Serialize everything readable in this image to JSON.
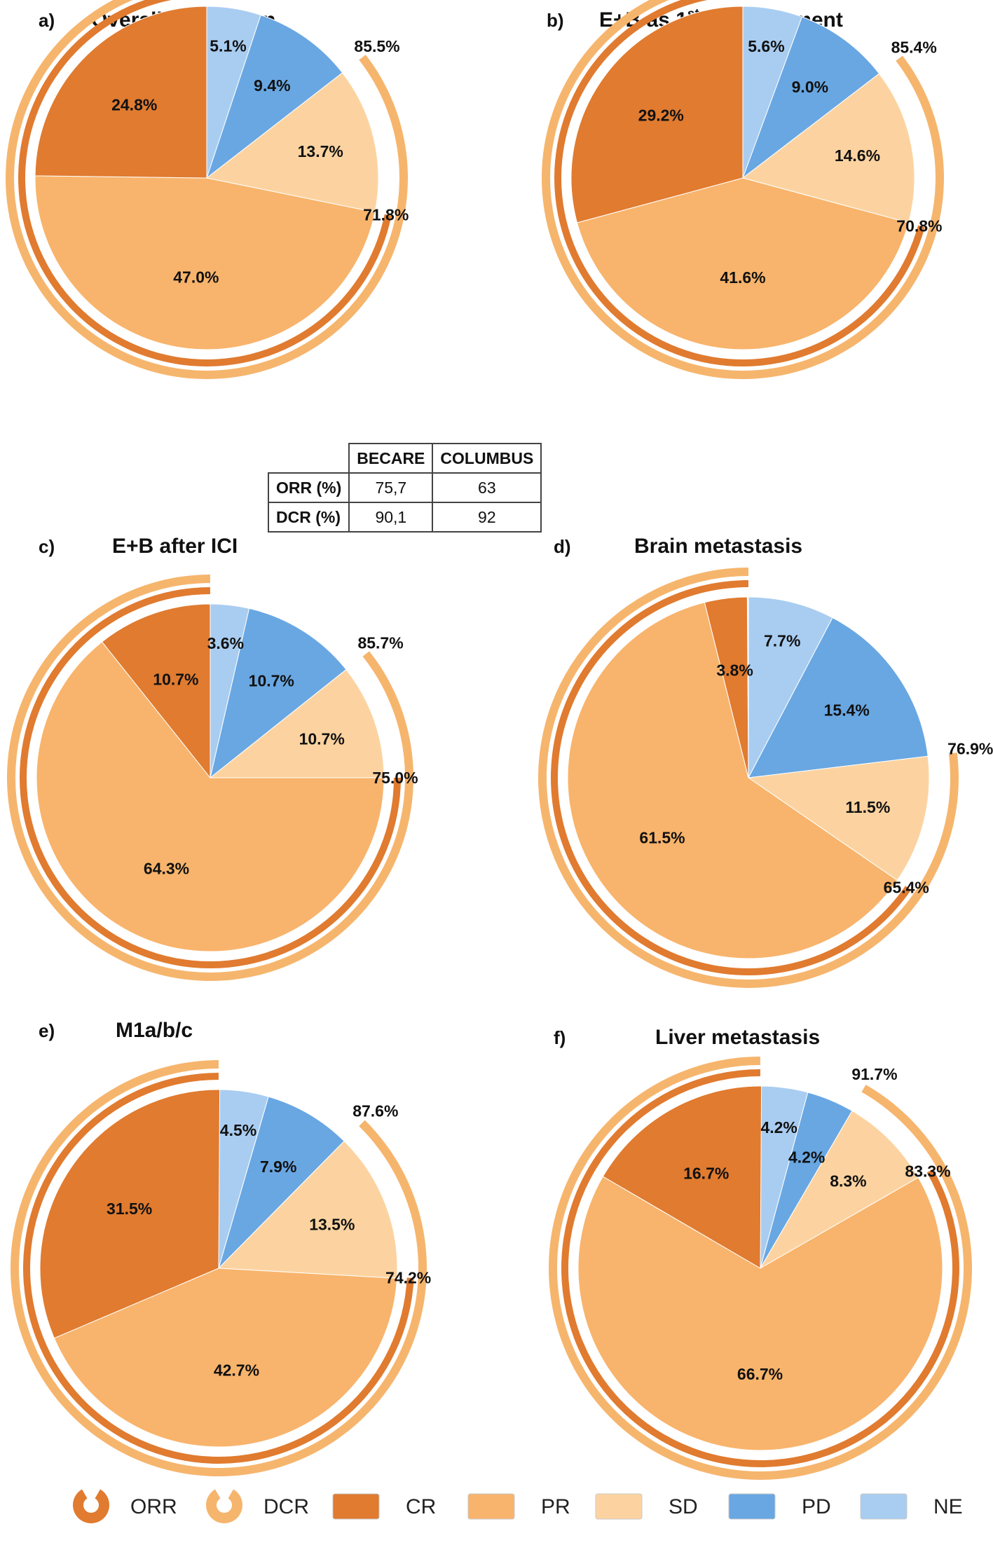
{
  "colors": {
    "CR": "#e07b30",
    "PR": "#f8b46c",
    "SD": "#fcd3a0",
    "PD": "#69a7e2",
    "NE": "#a9cdf1",
    "ORR": "#e07b30",
    "DCR": "#f6b56d"
  },
  "chart_data": [
    {
      "type": "pie",
      "letter": "a)",
      "title": "Overall population",
      "slices": [
        {
          "name": "NE",
          "value": 5.1,
          "label": "5.1%"
        },
        {
          "name": "PD",
          "value": 9.4,
          "label": "9.4%"
        },
        {
          "name": "SD",
          "value": 13.7,
          "label": "13.7%"
        },
        {
          "name": "PR",
          "value": 47.0,
          "label": "47.0%"
        },
        {
          "name": "CR",
          "value": 24.8,
          "label": "24.8%"
        }
      ],
      "DCR": {
        "value": 85.5,
        "label": "85.5%"
      },
      "ORR": {
        "value": 71.8,
        "label": "71.8%"
      }
    },
    {
      "type": "pie",
      "letter": "b)",
      "title": "E+B as 1",
      "title_sup": "st",
      "title_tail": " line treatment",
      "slices": [
        {
          "name": "NE",
          "value": 5.6,
          "label": "5.6%"
        },
        {
          "name": "PD",
          "value": 9.0,
          "label": "9.0%"
        },
        {
          "name": "SD",
          "value": 14.6,
          "label": "14.6%"
        },
        {
          "name": "PR",
          "value": 41.6,
          "label": "41.6%"
        },
        {
          "name": "CR",
          "value": 29.2,
          "label": "29.2%"
        }
      ],
      "DCR": {
        "value": 85.4,
        "label": "85.4%"
      },
      "ORR": {
        "value": 70.8,
        "label": "70.8%"
      }
    },
    {
      "type": "pie",
      "letter": "c)",
      "title": "E+B after ICI",
      "slices": [
        {
          "name": "NE",
          "value": 3.6,
          "label": "3.6%"
        },
        {
          "name": "PD",
          "value": 10.7,
          "label": "10.7%"
        },
        {
          "name": "SD",
          "value": 10.7,
          "label": "10.7%"
        },
        {
          "name": "PR",
          "value": 64.3,
          "label": "64.3%"
        },
        {
          "name": "CR",
          "value": 10.7,
          "label": "10.7%"
        }
      ],
      "DCR": {
        "value": 85.7,
        "label": "85.7%"
      },
      "ORR": {
        "value": 75.0,
        "label": "75.0%"
      }
    },
    {
      "type": "pie",
      "letter": "d)",
      "title": "Brain metastasis",
      "slices": [
        {
          "name": "NE",
          "value": 7.7,
          "label": "7.7%"
        },
        {
          "name": "PD",
          "value": 15.4,
          "label": "15.4%"
        },
        {
          "name": "SD",
          "value": 11.5,
          "label": "11.5%"
        },
        {
          "name": "PR",
          "value": 61.5,
          "label": "61.5%"
        },
        {
          "name": "CR",
          "value": 3.8,
          "label": "3.8%"
        }
      ],
      "DCR": {
        "value": 76.9,
        "label": "76.9%"
      },
      "ORR": {
        "value": 65.4,
        "label": "65.4%"
      }
    },
    {
      "type": "pie",
      "letter": "e)",
      "title": "M1a/b/c",
      "slices": [
        {
          "name": "NE",
          "value": 4.5,
          "label": "4.5%"
        },
        {
          "name": "PD",
          "value": 7.9,
          "label": "7.9%"
        },
        {
          "name": "SD",
          "value": 13.5,
          "label": "13.5%"
        },
        {
          "name": "PR",
          "value": 42.7,
          "label": "42.7%"
        },
        {
          "name": "CR",
          "value": 31.5,
          "label": "31.5%"
        }
      ],
      "DCR": {
        "value": 87.6,
        "label": "87.6%"
      },
      "ORR": {
        "value": 74.2,
        "label": "74.2%"
      }
    },
    {
      "type": "pie",
      "letter": "f)",
      "title": "Liver metastasis",
      "slices": [
        {
          "name": "NE",
          "value": 4.2,
          "label": "4.2%"
        },
        {
          "name": "PD",
          "value": 4.2,
          "label": "4.2%"
        },
        {
          "name": "SD",
          "value": 8.3,
          "label": "8.3%"
        },
        {
          "name": "PR",
          "value": 66.7,
          "label": "66.7%"
        },
        {
          "name": "CR",
          "value": 16.7,
          "label": "16.7%"
        }
      ],
      "DCR": {
        "value": 91.7,
        "label": "91.7%"
      },
      "ORR": {
        "value": 83.3,
        "label": "83.3%"
      }
    }
  ],
  "comparison_table": {
    "headers": [
      "BECARE",
      "COLUMBUS"
    ],
    "rows": [
      {
        "label": "ORR (%)",
        "becare": "75,7",
        "columbus": "63"
      },
      {
        "label": "DCR (%)",
        "becare": "90,1",
        "columbus": "92"
      }
    ]
  },
  "legend": [
    {
      "key": "ORR",
      "label": "ORR",
      "kind": "ring"
    },
    {
      "key": "DCR",
      "label": "DCR",
      "kind": "ring"
    },
    {
      "key": "CR",
      "label": "CR",
      "kind": "box"
    },
    {
      "key": "PR",
      "label": "PR",
      "kind": "box"
    },
    {
      "key": "SD",
      "label": "SD",
      "kind": "box"
    },
    {
      "key": "PD",
      "label": "PD",
      "kind": "box"
    },
    {
      "key": "NE",
      "label": "NE",
      "kind": "box"
    }
  ]
}
